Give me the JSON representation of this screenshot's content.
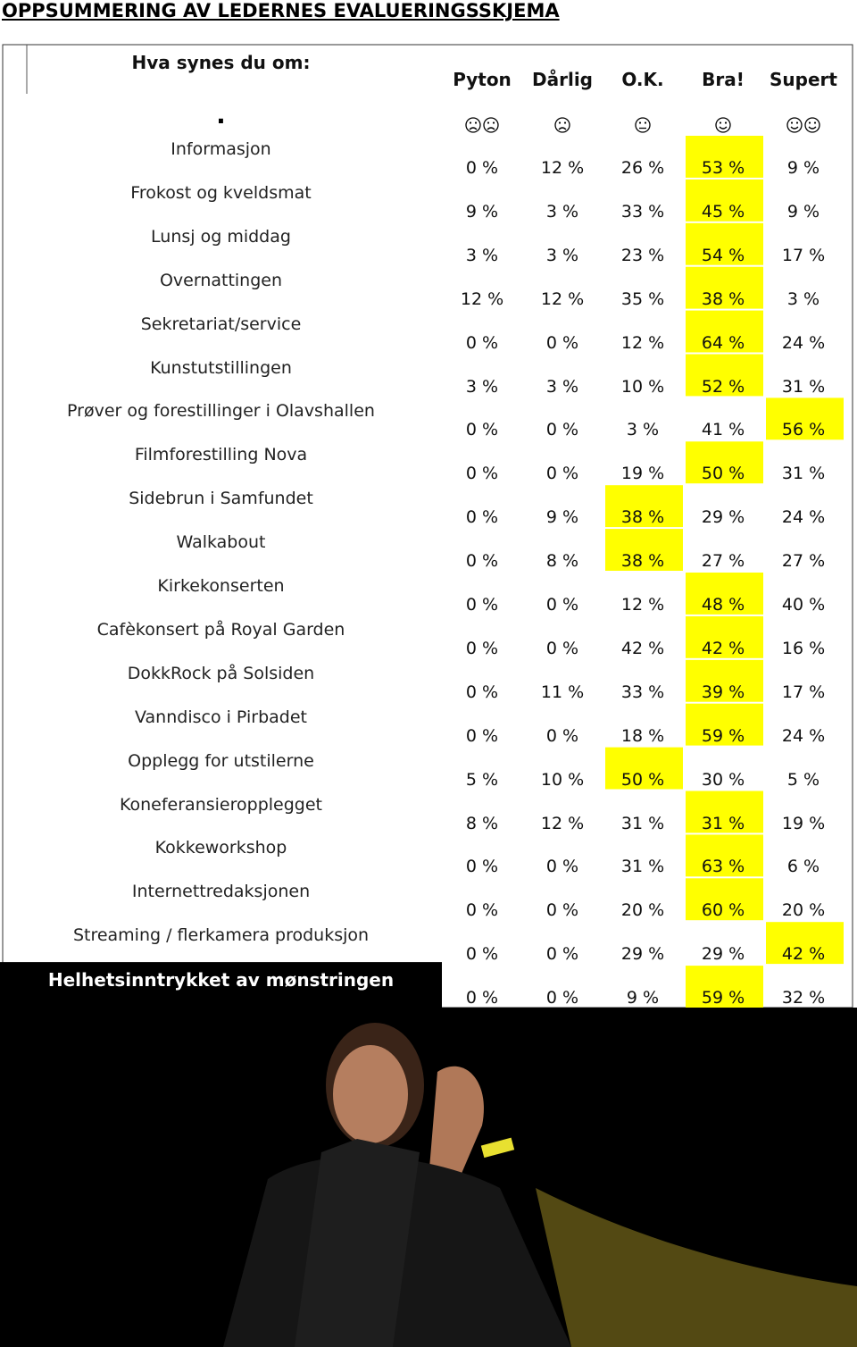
{
  "title": "OPPSUMMERING AV LEDERNES EVALUERINGSSKJEMA",
  "question": "Hva synes du om:",
  "dot": ".",
  "columns": [
    "Pyton",
    "Dårlig",
    "O.K.",
    "Bra!",
    "Supert"
  ],
  "rows": [
    {
      "label": "Informasjon",
      "values": [
        "0 %",
        "12 %",
        "26 %",
        "53 %",
        "9 %"
      ],
      "highlight": 3
    },
    {
      "label": "Frokost og kveldsmat",
      "values": [
        "9 %",
        "3 %",
        "33 %",
        "45 %",
        "9 %"
      ],
      "highlight": 3
    },
    {
      "label": "Lunsj og middag",
      "values": [
        "3 %",
        "3 %",
        "23 %",
        "54 %",
        "17 %"
      ],
      "highlight": 3
    },
    {
      "label": "Overnattingen",
      "values": [
        "12 %",
        "12 %",
        "35 %",
        "38 %",
        "3 %"
      ],
      "highlight": 3
    },
    {
      "label": "Sekretariat/service",
      "values": [
        "0 %",
        "0 %",
        "12 %",
        "64 %",
        "24 %"
      ],
      "highlight": 3
    },
    {
      "label": "Kunstutstillingen",
      "values": [
        "3 %",
        "3 %",
        "10 %",
        "52 %",
        "31 %"
      ],
      "highlight": 3
    },
    {
      "label": "Prøver og forestillinger i Olavshallen",
      "values": [
        "0 %",
        "0 %",
        "3 %",
        "41 %",
        "56 %"
      ],
      "highlight": 4
    },
    {
      "label": "Filmforestilling Nova",
      "values": [
        "0 %",
        "0 %",
        "19 %",
        "50 %",
        "31 %"
      ],
      "highlight": 3
    },
    {
      "label": "Sidebrun i Samfundet",
      "values": [
        "0 %",
        "9 %",
        "38 %",
        "29 %",
        "24 %"
      ],
      "highlight": 2
    },
    {
      "label": "Walkabout",
      "values": [
        "0 %",
        "8 %",
        "38 %",
        "27 %",
        "27 %"
      ],
      "highlight": 2
    },
    {
      "label": "Kirkekonserten",
      "values": [
        "0 %",
        "0 %",
        "12 %",
        "48 %",
        "40 %"
      ],
      "highlight": 3
    },
    {
      "label": "Cafèkonsert på  Royal Garden",
      "values": [
        "0 %",
        "0 %",
        "42 %",
        "42 %",
        "16 %"
      ],
      "highlight": 3
    },
    {
      "label": "DokkRock på Solsiden",
      "values": [
        "0 %",
        "11 %",
        "33 %",
        "39 %",
        "17 %"
      ],
      "highlight": 3
    },
    {
      "label": "Vanndisco i Pirbadet",
      "values": [
        "0 %",
        "0 %",
        "18 %",
        "59 %",
        "24 %"
      ],
      "highlight": 3
    },
    {
      "label": "Opplegg for utstilerne",
      "values": [
        "5 %",
        "10 %",
        "50 %",
        "30 %",
        "5 %"
      ],
      "highlight": 2
    },
    {
      "label": "Koneferansieropplegget",
      "values": [
        "8 %",
        "12 %",
        "31 %",
        "31 %",
        "19 %"
      ],
      "highlight": 3
    },
    {
      "label": "Kokkeworkshop",
      "values": [
        "0 %",
        "0 %",
        "31 %",
        "63 %",
        "6 %"
      ],
      "highlight": 3
    },
    {
      "label": "Internettredaksjonen",
      "values": [
        "0 %",
        "0 %",
        "20 %",
        "60 %",
        "20 %"
      ],
      "highlight": 3
    },
    {
      "label": "Streaming / flerkamera produksjon",
      "values": [
        "0 %",
        "0 %",
        "29 %",
        "29 %",
        "42 %"
      ],
      "highlight": 4
    },
    {
      "label": "Helhetsinntrykket av mønstringen",
      "values": [
        "0 %",
        "0 %",
        "9 %",
        "59 %",
        "32 %"
      ],
      "highlight": 3,
      "emphasis": true
    }
  ]
}
